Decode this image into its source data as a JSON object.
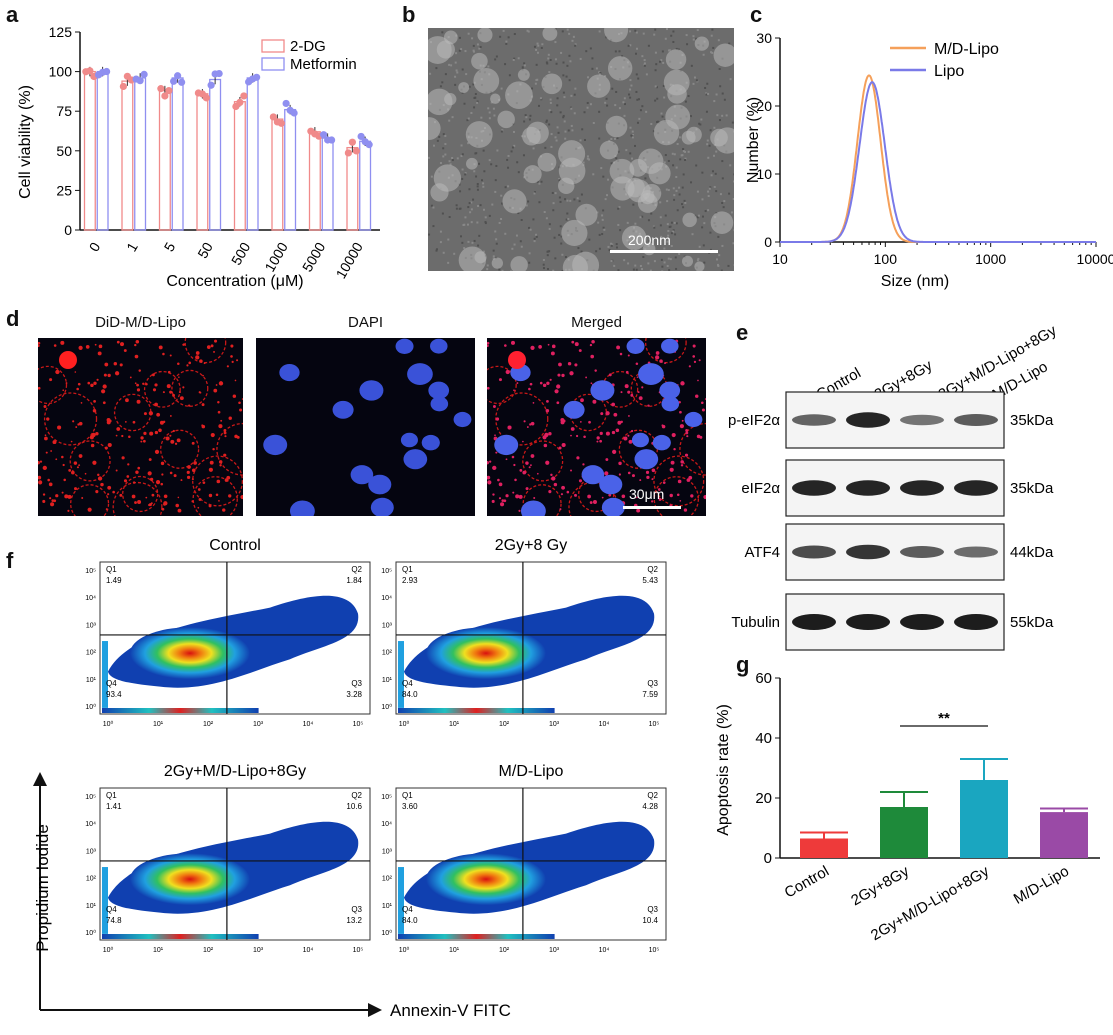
{
  "panels": {
    "a": {
      "letter": "a",
      "chart_data": {
        "type": "bar",
        "categories": [
          "0",
          "1",
          "5",
          "50",
          "500",
          "1000",
          "5000",
          "10000"
        ],
        "series": [
          {
            "name": "2-DG",
            "values": [
              100,
              94,
              88,
              86,
              81,
              70,
              62,
              52
            ],
            "color": "#f08a8a"
          },
          {
            "name": "Metformin",
            "values": [
              100,
              96,
              96,
              95,
              96,
              76,
              58,
              56
            ],
            "color": "#8f8ff0"
          }
        ],
        "xlabel": "Concentration (μM)",
        "ylabel": "Cell viability (%)",
        "ylim": [
          0,
          125
        ],
        "yticks": [
          0,
          25,
          50,
          75,
          100,
          125
        ],
        "legend": "top-right"
      }
    },
    "b": {
      "letter": "b",
      "scale_bar": "200nm"
    },
    "c": {
      "letter": "c",
      "chart_data": {
        "type": "line",
        "series": [
          {
            "name": "M/D-Lipo",
            "color": "#f5a05a",
            "peak_x": 70,
            "peak_y": 24.5,
            "width": 0.11
          },
          {
            "name": "Lipo",
            "color": "#7a7ae8",
            "peak_x": 75,
            "peak_y": 23.5,
            "width": 0.12
          }
        ],
        "xlabel": "Size (nm)",
        "ylabel": "Number (%)",
        "xscale": "log",
        "xlim": [
          10,
          10000
        ],
        "xticks": [
          "10",
          "100",
          "1000",
          "10000"
        ],
        "ylim": [
          0,
          30
        ],
        "yticks": [
          0,
          10,
          20,
          30
        ],
        "legend": "top-right"
      }
    },
    "d": {
      "letter": "d",
      "images": [
        {
          "title": "DiD-M/D-Lipo"
        },
        {
          "title": "DAPI"
        },
        {
          "title": "Merged"
        }
      ],
      "scale_bar": "30μm"
    },
    "e": {
      "letter": "e",
      "lanes": [
        "Control",
        "2Gy+8Gy",
        "2Gy+M/D-Lipo+8Gy",
        "M/D-Lipo"
      ],
      "blots": [
        {
          "protein": "p-eIF2α",
          "size": "35kDa",
          "intensity": [
            0.55,
            0.95,
            0.45,
            0.6
          ]
        },
        {
          "protein": "eIF2α",
          "size": "35kDa",
          "intensity": [
            0.95,
            0.95,
            0.95,
            0.95
          ]
        },
        {
          "protein": "ATF4",
          "size": "44kDa",
          "intensity": [
            0.7,
            0.85,
            0.6,
            0.5
          ]
        },
        {
          "protein": "Tubulin",
          "size": "55kDa",
          "intensity": [
            1,
            1,
            1,
            1
          ]
        }
      ]
    },
    "f": {
      "letter": "f",
      "y_axis_label": "Propidium Iodide",
      "x_axis_label": "Annexin-V FITC",
      "plots": [
        {
          "title": "Control",
          "q1": "Q1",
          "q1v": "1.49",
          "q2": "Q2",
          "q2v": "1.84",
          "q3": "Q3",
          "q3v": "3.28",
          "q4": "Q4",
          "q4v": "93.4"
        },
        {
          "title": "2Gy+8 Gy",
          "q1": "Q1",
          "q1v": "2.93",
          "q2": "Q2",
          "q2v": "5.43",
          "q3": "Q3",
          "q3v": "7.59",
          "q4": "Q4",
          "q4v": "84.0"
        },
        {
          "title": "2Gy+M/D-Lipo+8Gy",
          "q1": "Q1",
          "q1v": "1.41",
          "q2": "Q2",
          "q2v": "10.6",
          "q3": "Q3",
          "q3v": "13.2",
          "q4": "Q4",
          "q4v": "74.8"
        },
        {
          "title": "M/D-Lipo",
          "q1": "Q1",
          "q1v": "3.60",
          "q2": "Q2",
          "q2v": "4.28",
          "q3": "Q3",
          "q3v": "10.4",
          "q4": "Q4",
          "q4v": "84.0"
        }
      ]
    },
    "g": {
      "letter": "g",
      "chart_data": {
        "type": "bar",
        "categories": [
          "Control",
          "2Gy+8Gy",
          "2Gy+M/D-Lipo+8Gy",
          "M/D-Lipo"
        ],
        "values": [
          6.5,
          17,
          26,
          15.3
        ],
        "errors": [
          2,
          5,
          7,
          1.2
        ],
        "colors": [
          "#ee3a3a",
          "#1e8a3a",
          "#1aa6c0",
          "#9a4aa6"
        ],
        "ylabel": "Apoptosis rate (%)",
        "ylim": [
          0,
          60
        ],
        "yticks": [
          0,
          20,
          40,
          60
        ],
        "significance": "**"
      }
    }
  }
}
